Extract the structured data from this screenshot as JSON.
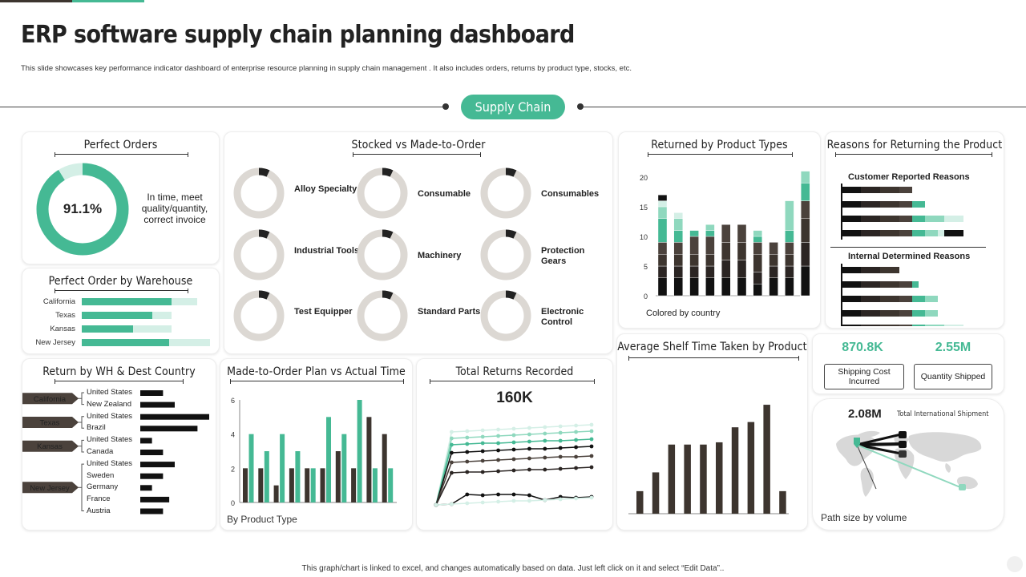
{
  "header": {
    "title": "ERP software supply chain planning dashboard",
    "subtitle": "This slide showcases key performance indicator dashboard of enterprise resource planning in supply chain management  . It also includes orders, returns by product type, stocks, etc.",
    "section_pill": "Supply Chain"
  },
  "footer": {
    "note": "This graph/chart is linked to excel, and changes automatically based on data. Just left click on it and select “Edit Data”.."
  },
  "colors": {
    "teal": "#45b994",
    "light_teal": "#8fd8be",
    "pale_teal": "#d4efe6",
    "dark": "#3d352f",
    "black": "#111111",
    "grey_ring": "#dcd8d3"
  },
  "perfect_orders": {
    "title": "Perfect Orders",
    "value_text": "91.1%",
    "value": 0.911,
    "caption": "In time, meet quality/quantity, correct invoice"
  },
  "stocked": {
    "title": "Stocked vs Made-to-Order",
    "items": [
      {
        "label": "Alloy Specialty",
        "filled": 0.07
      },
      {
        "label": "Consumable",
        "filled": 0.07
      },
      {
        "label": "Consumables",
        "filled": 0.07
      },
      {
        "label": "Industrial Tools",
        "filled": 0.07
      },
      {
        "label": "Machinery",
        "filled": 0.07
      },
      {
        "label": "Protection Gears",
        "filled": 0.07
      },
      {
        "label": "Test Equipper",
        "filled": 0.07
      },
      {
        "label": "Standard Parts",
        "filled": 0.07
      },
      {
        "label": "Electronic Control",
        "filled": 0.07
      }
    ]
  },
  "perfect_by_warehouse": {
    "title": "Perfect Order by Warehouse",
    "rows": [
      {
        "label": "California",
        "value": 0.7,
        "total": 0.9
      },
      {
        "label": "Texas",
        "value": 0.55,
        "total": 0.7
      },
      {
        "label": "Kansas",
        "value": 0.4,
        "total": 0.7
      },
      {
        "label": "New Jersey",
        "value": 0.68,
        "total": 1.0
      }
    ]
  },
  "return_by_country": {
    "title": "Return by WH & Dest Country",
    "groups": [
      {
        "label": "California",
        "countries": [
          {
            "label": "United States",
            "value": 0.33
          },
          {
            "label": "New Zealand",
            "value": 0.5
          }
        ]
      },
      {
        "label": "Texas",
        "countries": [
          {
            "label": "United States",
            "value": 1.0
          },
          {
            "label": "Brazil",
            "value": 0.83
          }
        ]
      },
      {
        "label": "Kansas",
        "countries": [
          {
            "label": "United States",
            "value": 0.17
          },
          {
            "label": "Canada",
            "value": 0.33
          }
        ]
      },
      {
        "label": "New Jersey",
        "countries": [
          {
            "label": "United States",
            "value": 0.5
          },
          {
            "label": "Sweden",
            "value": 0.33
          },
          {
            "label": "Germany",
            "value": 0.17
          },
          {
            "label": "France",
            "value": 0.42
          },
          {
            "label": "Austria",
            "value": 0.33
          }
        ]
      }
    ]
  },
  "returned_by_type": {
    "title": "Returned by Product Types",
    "caption": "Colored by country",
    "chart_data": {
      "type": "bar",
      "stacked": true,
      "ylim": [
        0,
        20
      ],
      "yticks": [
        0,
        5,
        10,
        15,
        20
      ],
      "segment_colors": [
        "#111111",
        "#2b2523",
        "#3d352f",
        "#4b423c",
        "#45b994",
        "#8fd8be",
        "#d4efe6"
      ],
      "stacks": [
        [
          3,
          2,
          2,
          2,
          4,
          2,
          1,
          1
        ],
        [
          3,
          2,
          2,
          2,
          2,
          2,
          1
        ],
        [
          3,
          2,
          2,
          3,
          1
        ],
        [
          3,
          2,
          2,
          3,
          1,
          1
        ],
        [
          3,
          3,
          3,
          3
        ],
        [
          3,
          3,
          3,
          3
        ],
        [
          2,
          2,
          3,
          2,
          1,
          1
        ],
        [
          3,
          2,
          2,
          2
        ],
        [
          3,
          2,
          2,
          2,
          2,
          5
        ],
        [
          5,
          4,
          4,
          3,
          3,
          2
        ]
      ]
    }
  },
  "reasons": {
    "title": "Reasons for Returning the Product",
    "customer_label": "Customer Reported Reasons",
    "internal_label": "Internal Determined Reasons",
    "segment_colors": [
      "#111111",
      "#2b2523",
      "#3d352f",
      "#4b423c",
      "#45b994",
      "#8fd8be",
      "#d4efe6"
    ],
    "customer": [
      [
        3,
        3,
        3,
        2
      ],
      [
        3,
        3,
        3,
        2,
        2
      ],
      [
        3,
        3,
        3,
        2,
        2,
        3,
        3
      ],
      [
        3,
        3,
        3,
        2,
        2,
        2,
        1,
        3
      ]
    ],
    "internal": [
      [
        3,
        3,
        3
      ],
      [
        3,
        3,
        3,
        2,
        1
      ],
      [
        3,
        3,
        3,
        2,
        2,
        2
      ],
      [
        3,
        3,
        3,
        2,
        2,
        2
      ],
      [
        3,
        3,
        3,
        2,
        2,
        3,
        3
      ]
    ]
  },
  "made_to_order": {
    "title": "Made-to-Order Plan vs Actual Time",
    "caption": "By Product Type",
    "chart_data": {
      "type": "bar",
      "ylim": [
        0,
        6
      ],
      "yticks": [
        0,
        2,
        4,
        6
      ],
      "series": [
        {
          "values": [
            2,
            2,
            1,
            2,
            2,
            2,
            3,
            2,
            5,
            4
          ],
          "color": "#3d352f"
        },
        {
          "values": [
            4,
            3,
            4,
            3,
            2,
            5,
            4,
            6,
            2,
            2
          ],
          "color": "#45b994"
        }
      ]
    }
  },
  "total_returns": {
    "title": "Total Returns Recorded",
    "value": "160K",
    "chart_data": {
      "type": "line",
      "ylim": [
        0,
        10
      ],
      "series": [
        {
          "color": "#d4efe6",
          "values": [
            0,
            9.1,
            9.2,
            9.3,
            9.4,
            9.5,
            9.6,
            9.7,
            9.8,
            9.9,
            10.0
          ]
        },
        {
          "color": "#8fd8be",
          "values": [
            0,
            8.3,
            8.4,
            8.5,
            8.6,
            8.7,
            8.8,
            8.9,
            9.0,
            9.1,
            9.2
          ]
        },
        {
          "color": "#45b994",
          "values": [
            0,
            7.5,
            7.6,
            7.7,
            7.7,
            7.8,
            7.9,
            8.0,
            8.0,
            8.1,
            8.2
          ]
        },
        {
          "color": "#111111",
          "values": [
            0,
            6.5,
            6.6,
            6.7,
            6.8,
            6.9,
            7.0,
            7.0,
            7.1,
            7.2,
            7.3
          ]
        },
        {
          "color": "#4b423c",
          "values": [
            0,
            5.3,
            5.4,
            5.5,
            5.6,
            5.7,
            5.8,
            5.9,
            6.0,
            6.0,
            6.1
          ]
        },
        {
          "color": "#2b2523",
          "values": [
            0,
            4.0,
            4.1,
            4.1,
            4.2,
            4.3,
            4.4,
            4.4,
            4.5,
            4.6,
            4.7
          ]
        },
        {
          "color": "#111111",
          "values": [
            0,
            0.1,
            1.3,
            1.2,
            1.3,
            1.3,
            1.2,
            0.6,
            1.0,
            0.9,
            1.0
          ]
        },
        {
          "color": "#d4efe6",
          "values": [
            0,
            0.1,
            0.2,
            0.3,
            0.4,
            0.5,
            0.5,
            0.6,
            0.7,
            0.8,
            0.9
          ]
        }
      ]
    }
  },
  "avg_shelf": {
    "title": "Average Shelf Time Taken by Product",
    "chart_data": {
      "type": "bar",
      "values": [
        3,
        5.5,
        9.2,
        9.2,
        9.2,
        9.5,
        11.5,
        12.2,
        14.5,
        3
      ],
      "ylim": [
        0,
        16
      ]
    }
  },
  "kpis": {
    "shipping_cost": {
      "value": "870.8K",
      "label": "Shipping Cost Incurred"
    },
    "quantity_shipped": {
      "value": "2.55M",
      "label": "Quantity Shipped"
    }
  },
  "map_panel": {
    "value": "2.08M",
    "label": "Total International Shipment",
    "caption": "Path size by volume"
  }
}
